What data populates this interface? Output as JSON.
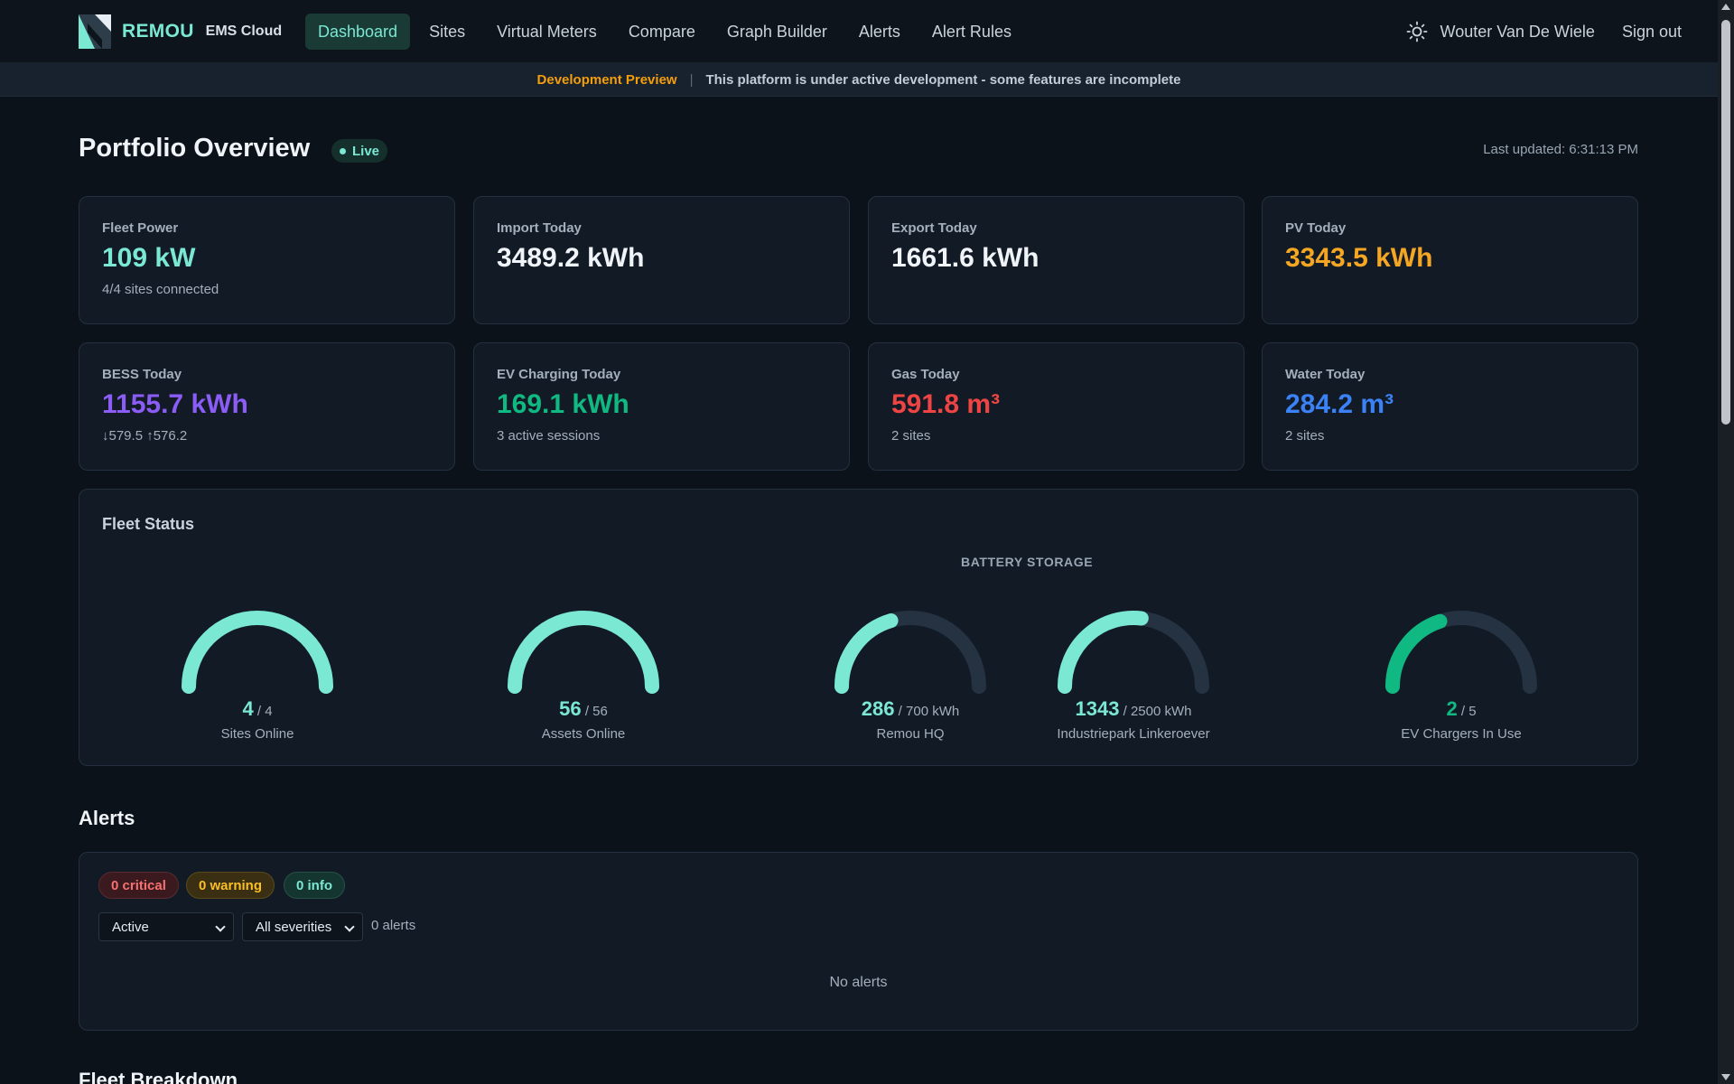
{
  "brand": {
    "name": "REMOU",
    "sub": "EMS Cloud"
  },
  "nav": {
    "items": [
      {
        "label": "Dashboard",
        "active": true
      },
      {
        "label": "Sites"
      },
      {
        "label": "Virtual Meters"
      },
      {
        "label": "Compare"
      },
      {
        "label": "Graph Builder"
      },
      {
        "label": "Alerts"
      },
      {
        "label": "Alert Rules"
      }
    ],
    "theme_icon": "sun-icon",
    "user": "Wouter Van De Wiele",
    "signout": "Sign out"
  },
  "banner": {
    "tag": "Development Preview",
    "separator": "|",
    "message": "This platform is under active development - some features are incomplete"
  },
  "header": {
    "title": "Portfolio Overview",
    "live": "Live",
    "last_updated": "Last updated: 6:31:13 PM"
  },
  "kpis": [
    {
      "label": "Fleet Power",
      "value": "109 kW",
      "sub": "4/4 sites connected",
      "color": "#7ae8d3"
    },
    {
      "label": "Import Today",
      "value": "3489.2 kWh",
      "sub": "",
      "color": "#f0f4f8"
    },
    {
      "label": "Export Today",
      "value": "1661.6 kWh",
      "sub": "",
      "color": "#f0f4f8"
    },
    {
      "label": "PV Today",
      "value": "3343.5 kWh",
      "sub": "",
      "color": "#f5a623"
    },
    {
      "label": "BESS Today",
      "value": "1155.7 kWh",
      "sub": "↓579.5 ↑576.2",
      "color": "#8b5cf6"
    },
    {
      "label": "EV Charging Today",
      "value": "169.1 kWh",
      "sub": "3 active sessions",
      "color": "#10b981"
    },
    {
      "label": "Gas Today",
      "value": "591.8 m³",
      "sub": "2 sites",
      "color": "#ef4444"
    },
    {
      "label": "Water Today",
      "value": "284.2 m³",
      "sub": "2 sites",
      "color": "#3b82f6"
    }
  ],
  "fleet": {
    "title": "Fleet Status",
    "bess_title": "BATTERY STORAGE",
    "gauges": [
      {
        "value": "4",
        "total": "/ 4",
        "label": "Sites Online",
        "fraction": 1.0,
        "color": "#7ae8d3"
      },
      {
        "value": "56",
        "total": "/ 56",
        "label": "Assets Online",
        "fraction": 1.0,
        "color": "#7ae8d3"
      },
      {
        "value": "286",
        "total": "/ 700 kWh",
        "label": "Remou HQ",
        "fraction": 0.409,
        "color": "#7ae8d3"
      },
      {
        "value": "1343",
        "total": "/ 2500 kWh",
        "label": "Industriepark Linkeroever",
        "fraction": 0.537,
        "color": "#7ae8d3"
      },
      {
        "value": "2",
        "total": "/ 5",
        "label": "EV Chargers In Use",
        "fraction": 0.4,
        "color": "#10b981"
      }
    ]
  },
  "alerts": {
    "title": "Alerts",
    "critical": "0 critical",
    "warning": "0 warning",
    "info": "0 info",
    "status_filter": "Active",
    "severity_filter": "All severities",
    "count": "0 alerts",
    "empty": "No alerts"
  },
  "breakdown": {
    "title": "Fleet Breakdown"
  }
}
